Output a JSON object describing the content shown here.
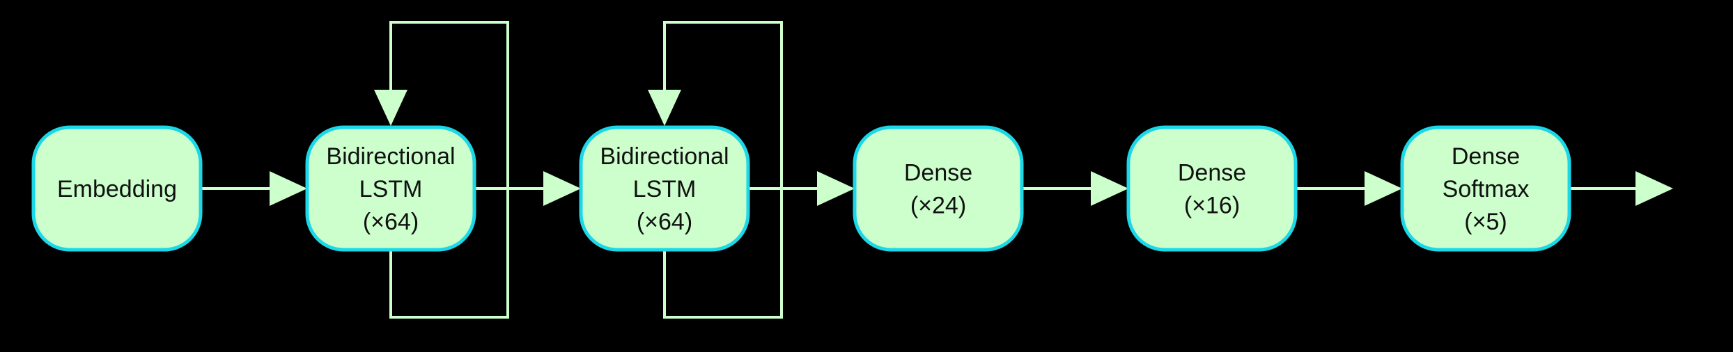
{
  "colors": {
    "background": "#000000",
    "node_fill": "#ccffcc",
    "node_stroke": "#1ad8e8",
    "line": "#ccffcc",
    "text": "#111111"
  },
  "nodes": [
    {
      "id": "embedding",
      "lines": [
        "Embedding"
      ]
    },
    {
      "id": "bilstm-1",
      "lines": [
        "Bidirectional",
        "LSTM",
        "(×64)"
      ]
    },
    {
      "id": "bilstm-2",
      "lines": [
        "Bidirectional",
        "LSTM",
        "(×64)"
      ]
    },
    {
      "id": "dense-24",
      "lines": [
        "Dense",
        "(×24)"
      ]
    },
    {
      "id": "dense-16",
      "lines": [
        "Dense",
        "(×16)"
      ]
    },
    {
      "id": "dense-softmax",
      "lines": [
        "Dense",
        "Softmax",
        "(×5)"
      ]
    }
  ],
  "edges": [
    {
      "from": "embedding",
      "to": "bilstm-1"
    },
    {
      "from": "bilstm-1",
      "to": "bilstm-2"
    },
    {
      "from": "bilstm-2",
      "to": "dense-24"
    },
    {
      "from": "dense-24",
      "to": "dense-16"
    },
    {
      "from": "dense-16",
      "to": "dense-softmax"
    },
    {
      "from": "dense-softmax",
      "to": "output"
    }
  ],
  "recurrent_loops": [
    "bilstm-1",
    "bilstm-2"
  ]
}
